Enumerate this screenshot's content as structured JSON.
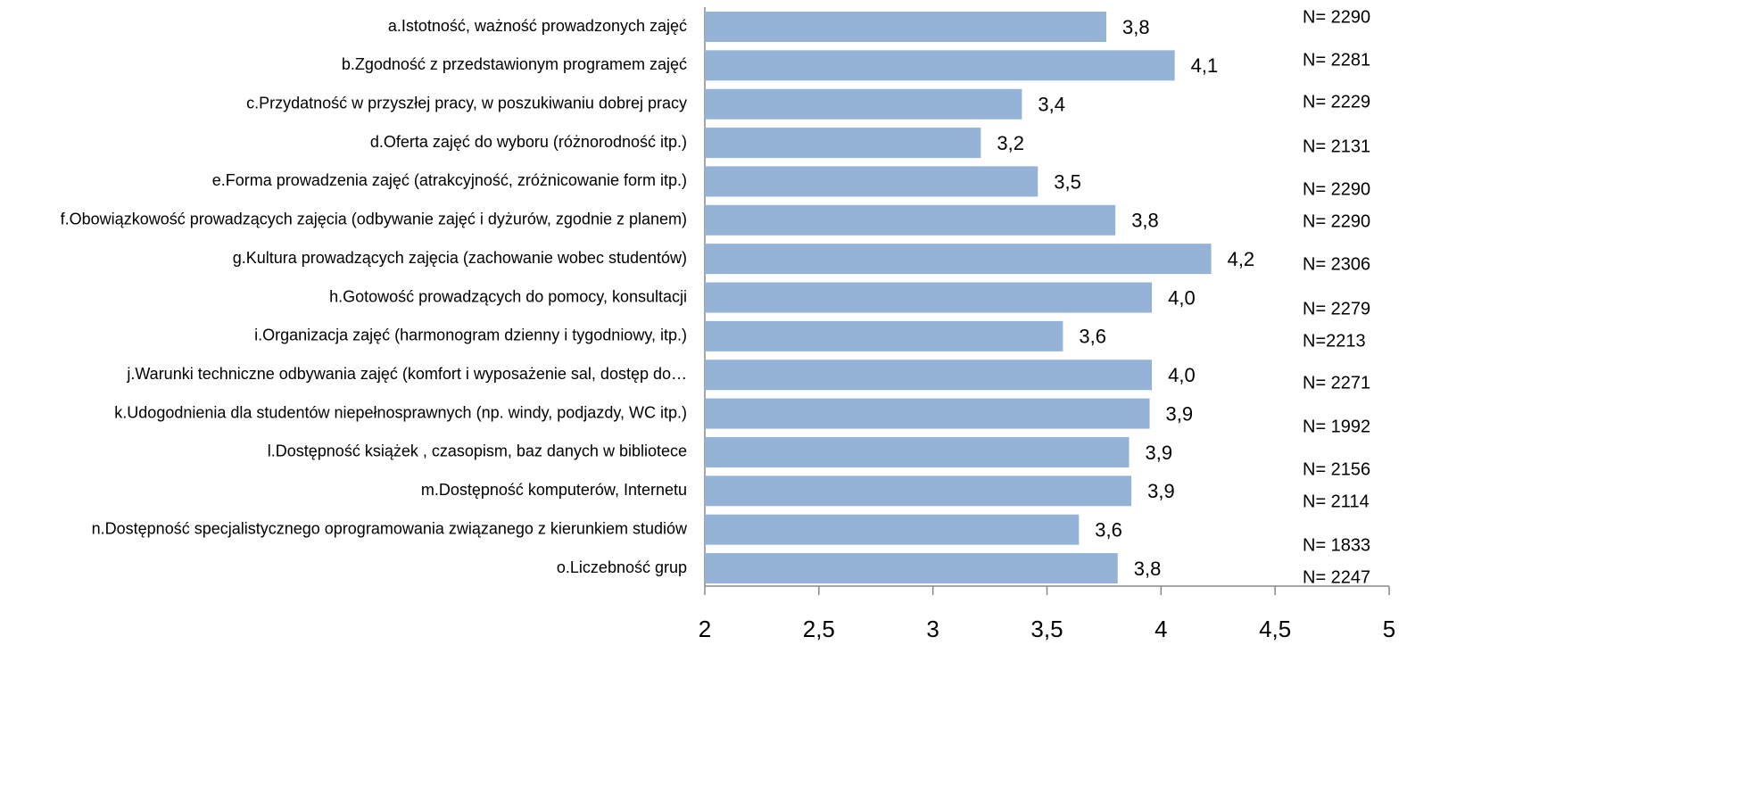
{
  "chart_data": {
    "type": "bar",
    "orientation": "horizontal",
    "categories": [
      "a.Istotność, ważność prowadzonych zajęć",
      "b.Zgodność z przedstawionym programem zajęć",
      "c.Przydatność w przyszłej pracy, w poszukiwaniu dobrej pracy",
      "d.Oferta zajęć  do wyboru (różnorodność itp.)",
      "e.Forma prowadzenia zajęć (atrakcyjność, zróżnicowanie form itp.)",
      "f.Obowiązkowość prowadzących zajęcia (odbywanie zajęć i dyżurów, zgodnie z planem)",
      "g.Kultura prowadzących zajęcia (zachowanie wobec studentów)",
      "h.Gotowość prowadzących do pomocy, konsultacji",
      "i.Organizacja zajęć (harmonogram dzienny i tygodniowy, itp.)",
      "j.Warunki techniczne odbywania zajęć (komfort i wyposażenie sal, dostęp do…",
      "k.Udogodnienia dla studentów niepełnosprawnych (np. windy, podjazdy, WC itp.)",
      "l.Dostępność książek , czasopism, baz danych w bibliotece",
      "m.Dostępność komputerów, Internetu",
      "n.Dostępność specjalistycznego oprogramowania związanego z kierunkiem studiów",
      "o.Liczebność grup"
    ],
    "values": [
      3.76,
      4.06,
      3.39,
      3.21,
      3.46,
      3.8,
      4.22,
      3.96,
      3.57,
      3.96,
      3.95,
      3.86,
      3.87,
      3.64,
      3.81
    ],
    "value_labels": [
      "3,8",
      "4,1",
      "3,4",
      "3,2",
      "3,5",
      "3,8",
      "4,2",
      "4,0",
      "3,6",
      "4,0",
      "3,9",
      "3,9",
      "3,9",
      "3,6",
      "3,8"
    ],
    "annotations": [
      "N= 2290",
      "N= 2281",
      "N= 2229",
      "N= 2131",
      "N= 2290",
      "N= 2290",
      "N= 2306",
      "N= 2279",
      "N=2213",
      "N= 2271",
      "N= 1992",
      "N= 2156",
      "N= 2114",
      "N= 1833",
      "N= 2247"
    ],
    "color": "#95b3d7",
    "xlim": [
      2,
      5
    ],
    "xticks": [
      2,
      {
        "value": 2.5,
        "label": "2,5"
      },
      3,
      {
        "value": 3.5,
        "label": "3,5"
      },
      4,
      {
        "value": 4.5,
        "label": "4,5"
      },
      5
    ]
  }
}
